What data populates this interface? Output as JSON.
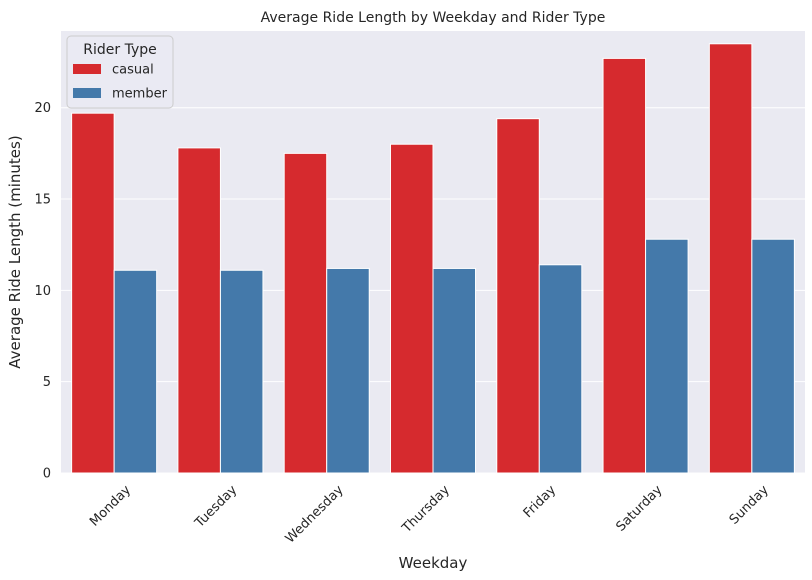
{
  "chart_data": {
    "type": "bar",
    "title": "Average Ride Length by Weekday and Rider Type",
    "xlabel": "Weekday",
    "ylabel": "Average Ride Length (minutes)",
    "categories": [
      "Monday",
      "Tuesday",
      "Wednesday",
      "Thursday",
      "Friday",
      "Saturday",
      "Sunday"
    ],
    "series": [
      {
        "name": "casual",
        "color": "#d62a2e",
        "values": [
          19.7,
          17.8,
          17.5,
          18.0,
          19.4,
          22.7,
          23.5
        ]
      },
      {
        "name": "member",
        "color": "#4479aa",
        "values": [
          11.1,
          11.1,
          11.2,
          11.2,
          11.4,
          12.8,
          12.8
        ]
      }
    ],
    "ylim": [
      0,
      24.2
    ],
    "yticks": [
      0,
      5,
      10,
      15,
      20
    ],
    "grid": true,
    "legend": {
      "title": "Rider Type",
      "placement": "top-left"
    },
    "background": "#eaeaf2",
    "grid_color": "#ffffff"
  }
}
